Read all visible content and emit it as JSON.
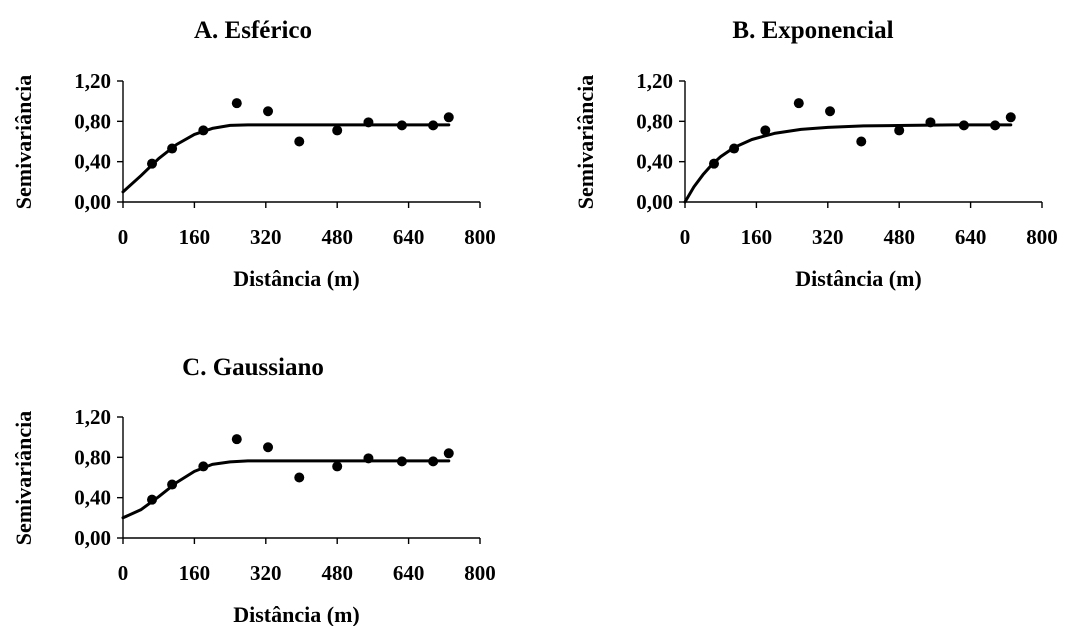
{
  "chart_data": [
    {
      "type": "scatter",
      "title": "A. Esférico",
      "xlabel": "Distância (m)",
      "ylabel": "Semivariância",
      "xlim": [
        0,
        800
      ],
      "ylim": [
        0,
        1.2
      ],
      "xticks": [
        "0",
        "160",
        "320",
        "480",
        "640",
        "800"
      ],
      "yticks": [
        "0,00",
        "0,40",
        "0,80",
        "1,20"
      ],
      "points": [
        {
          "x": 65,
          "y": 0.38
        },
        {
          "x": 110,
          "y": 0.53
        },
        {
          "x": 180,
          "y": 0.71
        },
        {
          "x": 255,
          "y": 0.98
        },
        {
          "x": 325,
          "y": 0.9
        },
        {
          "x": 395,
          "y": 0.6
        },
        {
          "x": 480,
          "y": 0.71
        },
        {
          "x": 550,
          "y": 0.79
        },
        {
          "x": 625,
          "y": 0.76
        },
        {
          "x": 695,
          "y": 0.76
        },
        {
          "x": 730,
          "y": 0.84
        }
      ],
      "model_curve": [
        {
          "x": 0,
          "y": 0.1
        },
        {
          "x": 40,
          "y": 0.26
        },
        {
          "x": 80,
          "y": 0.43
        },
        {
          "x": 120,
          "y": 0.57
        },
        {
          "x": 160,
          "y": 0.67
        },
        {
          "x": 200,
          "y": 0.73
        },
        {
          "x": 240,
          "y": 0.76
        },
        {
          "x": 280,
          "y": 0.765
        },
        {
          "x": 320,
          "y": 0.765
        },
        {
          "x": 400,
          "y": 0.765
        },
        {
          "x": 500,
          "y": 0.765
        },
        {
          "x": 600,
          "y": 0.765
        },
        {
          "x": 700,
          "y": 0.765
        },
        {
          "x": 730,
          "y": 0.765
        }
      ]
    },
    {
      "type": "scatter",
      "title": "B. Exponencial",
      "xlabel": "Distância (m)",
      "ylabel": "Semivariância",
      "xlim": [
        0,
        800
      ],
      "ylim": [
        0,
        1.2
      ],
      "xticks": [
        "0",
        "160",
        "320",
        "480",
        "640",
        "800"
      ],
      "yticks": [
        "0,00",
        "0,40",
        "0,80",
        "1,20"
      ],
      "points": [
        {
          "x": 65,
          "y": 0.38
        },
        {
          "x": 110,
          "y": 0.53
        },
        {
          "x": 180,
          "y": 0.71
        },
        {
          "x": 255,
          "y": 0.98
        },
        {
          "x": 325,
          "y": 0.9
        },
        {
          "x": 395,
          "y": 0.6
        },
        {
          "x": 480,
          "y": 0.71
        },
        {
          "x": 550,
          "y": 0.79
        },
        {
          "x": 625,
          "y": 0.76
        },
        {
          "x": 695,
          "y": 0.76
        },
        {
          "x": 730,
          "y": 0.84
        }
      ],
      "model_curve": [
        {
          "x": 0,
          "y": 0.0
        },
        {
          "x": 20,
          "y": 0.15
        },
        {
          "x": 40,
          "y": 0.27
        },
        {
          "x": 60,
          "y": 0.37
        },
        {
          "x": 80,
          "y": 0.45
        },
        {
          "x": 110,
          "y": 0.54
        },
        {
          "x": 150,
          "y": 0.62
        },
        {
          "x": 200,
          "y": 0.68
        },
        {
          "x": 260,
          "y": 0.72
        },
        {
          "x": 320,
          "y": 0.74
        },
        {
          "x": 400,
          "y": 0.755
        },
        {
          "x": 500,
          "y": 0.76
        },
        {
          "x": 600,
          "y": 0.765
        },
        {
          "x": 730,
          "y": 0.765
        }
      ]
    },
    {
      "type": "scatter",
      "title": "C. Gaussiano",
      "xlabel": "Distância (m)",
      "ylabel": "Semivariância",
      "xlim": [
        0,
        800
      ],
      "ylim": [
        0,
        1.2
      ],
      "xticks": [
        "0",
        "160",
        "320",
        "480",
        "640",
        "800"
      ],
      "yticks": [
        "0,00",
        "0,40",
        "0,80",
        "1,20"
      ],
      "points": [
        {
          "x": 65,
          "y": 0.38
        },
        {
          "x": 110,
          "y": 0.53
        },
        {
          "x": 180,
          "y": 0.71
        },
        {
          "x": 255,
          "y": 0.98
        },
        {
          "x": 325,
          "y": 0.9
        },
        {
          "x": 395,
          "y": 0.6
        },
        {
          "x": 480,
          "y": 0.71
        },
        {
          "x": 550,
          "y": 0.79
        },
        {
          "x": 625,
          "y": 0.76
        },
        {
          "x": 695,
          "y": 0.76
        },
        {
          "x": 730,
          "y": 0.84
        }
      ],
      "model_curve": [
        {
          "x": 0,
          "y": 0.2
        },
        {
          "x": 40,
          "y": 0.28
        },
        {
          "x": 80,
          "y": 0.41
        },
        {
          "x": 120,
          "y": 0.55
        },
        {
          "x": 160,
          "y": 0.66
        },
        {
          "x": 200,
          "y": 0.73
        },
        {
          "x": 240,
          "y": 0.755
        },
        {
          "x": 280,
          "y": 0.765
        },
        {
          "x": 320,
          "y": 0.765
        },
        {
          "x": 400,
          "y": 0.765
        },
        {
          "x": 500,
          "y": 0.765
        },
        {
          "x": 600,
          "y": 0.765
        },
        {
          "x": 700,
          "y": 0.765
        },
        {
          "x": 730,
          "y": 0.765
        }
      ]
    }
  ]
}
